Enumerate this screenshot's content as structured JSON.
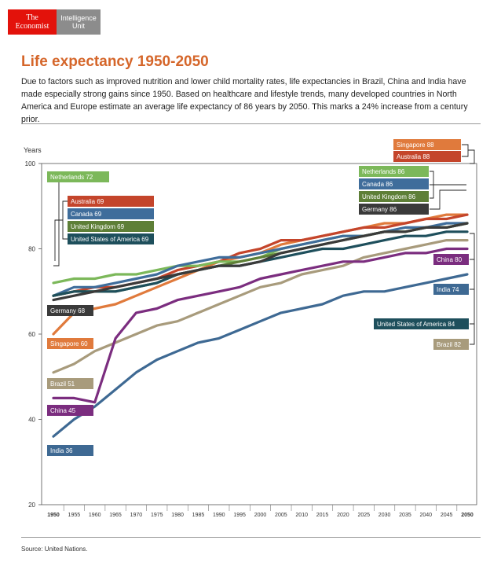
{
  "logo": {
    "brand_line1": "The",
    "brand_line2": "Economist",
    "unit_line1": "Intelligence",
    "unit_line2": "Unit"
  },
  "title": "Life expectancy 1950-2050",
  "description": "Due to factors such as improved nutrition and lower child mortality rates, life expectancies in Brazil, China and India have made especially strong gains since 1950. Based on healthcare and lifestyle trends, many developed countries in North America and Europe estimate an average life expectancy of 86 years by 2050. This marks a 24% increase from a century prior.",
  "source": "Source: United Nations.",
  "chart_data": {
    "type": "line",
    "ylabel": "Years",
    "xlabel": "",
    "ylim": [
      20,
      100
    ],
    "xlim": [
      1950,
      2050
    ],
    "yticks": [
      "20",
      "40",
      "60",
      "80",
      "100"
    ],
    "x": [
      1950,
      1955,
      1960,
      1965,
      1970,
      1975,
      1980,
      1985,
      1990,
      1995,
      2000,
      2005,
      2010,
      2015,
      2020,
      2025,
      2030,
      2035,
      2040,
      2045,
      2050
    ],
    "xtick_labels": [
      "1950",
      "1955",
      "1960",
      "1965",
      "1970",
      "1975",
      "1980",
      "1985",
      "1990",
      "1995",
      "2000",
      "2005",
      "2010",
      "2015",
      "2020",
      "2025",
      "2030",
      "2035",
      "2040",
      "2045",
      "2050"
    ],
    "grid": false,
    "series": [
      {
        "name": "Brazil",
        "color": "#a89b7c",
        "start_label": "Brazil 51",
        "end_label": "Brazil 82",
        "values": [
          51,
          53,
          56,
          58,
          60,
          62,
          63,
          65,
          67,
          69,
          71,
          72,
          74,
          75,
          76,
          78,
          79,
          80,
          81,
          82,
          82
        ]
      },
      {
        "name": "India",
        "color": "#3e6993",
        "start_label": "India 36",
        "end_label": "India 74",
        "values": [
          36,
          40,
          43,
          47,
          51,
          54,
          56,
          58,
          59,
          61,
          63,
          65,
          66,
          67,
          69,
          70,
          70,
          71,
          72,
          73,
          74
        ]
      },
      {
        "name": "China",
        "color": "#7b2d7f",
        "start_label": "China 45",
        "end_label": "China 80",
        "values": [
          45,
          45,
          44,
          59,
          65,
          66,
          68,
          69,
          70,
          71,
          73,
          74,
          75,
          76,
          77,
          77,
          78,
          79,
          79,
          80,
          80
        ]
      },
      {
        "name": "Singapore",
        "color": "#e07a3c",
        "start_label": "Singapore 60",
        "end_label": "Singapore 88",
        "values": [
          60,
          65,
          66,
          67,
          69,
          71,
          73,
          75,
          77,
          78,
          79,
          81,
          82,
          83,
          84,
          85,
          86,
          86,
          87,
          88,
          88
        ]
      },
      {
        "name": "Australia",
        "color": "#c4452b",
        "start_label": "Australia 69",
        "end_label": "Australia 88",
        "values": [
          69,
          70,
          71,
          71,
          72,
          73,
          75,
          76,
          77,
          79,
          80,
          82,
          82,
          83,
          84,
          85,
          85,
          86,
          87,
          87,
          88
        ]
      },
      {
        "name": "Netherlands",
        "color": "#7cb85a",
        "start_label": "Netherlands 72",
        "end_label": "Netherlands 86",
        "values": [
          72,
          73,
          73,
          74,
          74,
          75,
          76,
          76,
          77,
          77,
          78,
          80,
          81,
          82,
          83,
          83,
          84,
          84,
          85,
          85,
          86
        ]
      },
      {
        "name": "Canada",
        "color": "#3f6d9b",
        "start_label": "Canada 69",
        "end_label": "Canada 86",
        "values": [
          69,
          71,
          71,
          72,
          73,
          74,
          76,
          77,
          78,
          78,
          79,
          80,
          81,
          82,
          83,
          83,
          84,
          85,
          85,
          86,
          86
        ]
      },
      {
        "name": "United Kingdom",
        "color": "#5e7f37",
        "start_label": "United Kingdom 69",
        "end_label": "United Kingdom 86",
        "values": [
          69,
          70,
          70,
          70,
          71,
          72,
          74,
          75,
          76,
          77,
          78,
          79,
          80,
          81,
          82,
          83,
          84,
          84,
          85,
          85,
          86
        ]
      },
      {
        "name": "United States of America",
        "color": "#1e4f5c",
        "start_label": "United States of America 69",
        "end_label": "United States of America 84",
        "values": [
          69,
          70,
          70,
          70,
          71,
          72,
          74,
          75,
          76,
          76,
          77,
          78,
          79,
          80,
          80,
          81,
          82,
          83,
          83,
          84,
          84
        ]
      },
      {
        "name": "Germany",
        "color": "#3a3a3a",
        "start_label": "Germany 68",
        "end_label": "Germany 86",
        "values": [
          68,
          69,
          70,
          71,
          72,
          73,
          74,
          75,
          76,
          76,
          77,
          79,
          80,
          81,
          82,
          83,
          84,
          84,
          85,
          85,
          86
        ]
      }
    ]
  }
}
